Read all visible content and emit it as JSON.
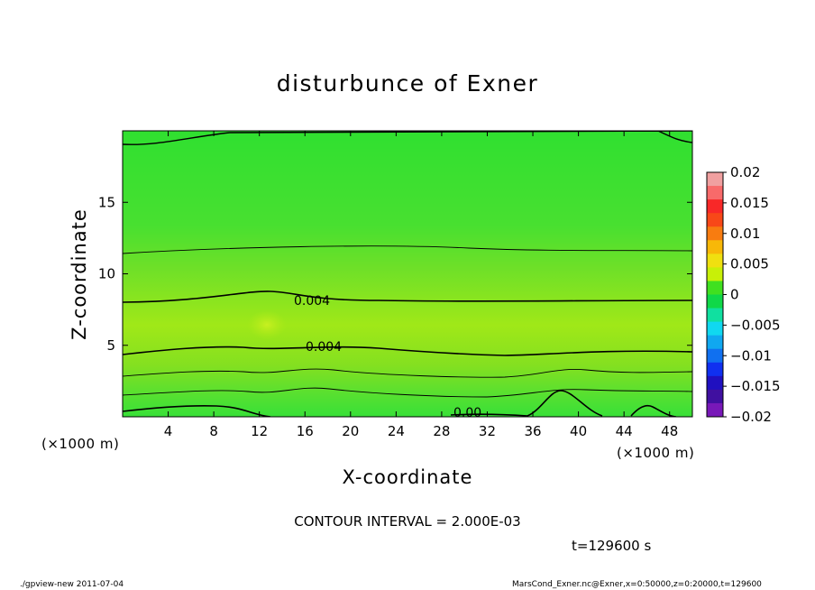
{
  "chart_data": {
    "type": "heatmap",
    "title": "disturbunce of Exner",
    "xlabel": "X-coordinate",
    "ylabel": "Z-coordinate",
    "x_unit_left": "(×1000 m)",
    "x_unit_right": "(×1000 m)",
    "xlim": [
      0,
      50
    ],
    "ylim": [
      0,
      20
    ],
    "xticks": [
      "4",
      "8",
      "12",
      "16",
      "20",
      "24",
      "28",
      "32",
      "36",
      "40",
      "44",
      "48"
    ],
    "xtick_values": [
      4,
      8,
      12,
      16,
      20,
      24,
      28,
      32,
      36,
      40,
      44,
      48
    ],
    "yticks": [
      "5",
      "10",
      "15"
    ],
    "ytick_values": [
      5,
      10,
      15
    ],
    "colorbar": {
      "labels": [
        "0.02",
        "0.015",
        "0.01",
        "0.005",
        "0",
        "−0.005",
        "−0.01",
        "−0.015",
        "−0.02"
      ],
      "values": [
        0.02,
        0.015,
        0.01,
        0.005,
        0,
        -0.005,
        -0.01,
        -0.015,
        -0.02
      ],
      "colors": [
        "#f0a0a0",
        "#f86a6a",
        "#f82828",
        "#f84818",
        "#f87c10",
        "#f8b808",
        "#f0e010",
        "#c8f008",
        "#40e020",
        "#10d848",
        "#10e0a0",
        "#10d8f0",
        "#10a8f0",
        "#1070f0",
        "#1030f0",
        "#2010c0",
        "#4010a0",
        "#7818b8"
      ]
    },
    "field_colors": {
      "top": "#30e030",
      "upper": "#48e030",
      "mid_upper": "#6ee028",
      "core": "#a0e818",
      "mid_lower": "#84e020",
      "lower": "#58e030",
      "bottom": "#38e038"
    },
    "contour_labels": [
      "0.004",
      "0.004",
      "0.00"
    ],
    "contour_interval_text": "CONTOUR INTERVAL = 2.000E-03",
    "time_text": "t=129600 s",
    "footer_left": "./gpview-new  2011-07-04",
    "footer_right": "MarsCond_Exner.nc@Exner,x=0:50000,z=0:20000,t=129600"
  }
}
